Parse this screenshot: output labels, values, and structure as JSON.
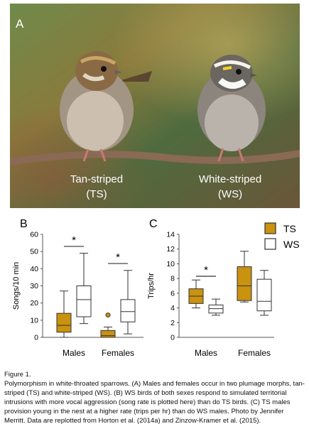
{
  "panel_a": {
    "letter": "A",
    "label_left_line1": "Tan-striped",
    "label_left_line2": "(TS)",
    "label_right_line1": "White-striped",
    "label_right_line2": "(WS)"
  },
  "colors": {
    "ts": "#c9920f",
    "ws": "#ffffff",
    "outline": "#333333"
  },
  "chart_data": [
    {
      "type": "box",
      "panel_letter": "B",
      "ylabel": "Songs/10 min",
      "ylim": [
        0,
        60
      ],
      "yticks": [
        "0",
        "10",
        "20",
        "30",
        "40",
        "50",
        "60"
      ],
      "categories": [
        "Males",
        "Females"
      ],
      "series": [
        {
          "name": "TS",
          "boxes": [
            {
              "category": "Males",
              "min": 0,
              "q1": 3,
              "median": 7,
              "q3": 14,
              "max": 27,
              "outliers": []
            },
            {
              "category": "Females",
              "min": 0,
              "q1": 0,
              "median": 1,
              "q3": 4,
              "max": 6,
              "outliers": [
                13
              ]
            }
          ]
        },
        {
          "name": "WS",
          "boxes": [
            {
              "category": "Males",
              "min": 8,
              "q1": 12,
              "median": 22,
              "q3": 30,
              "max": 49,
              "outliers": []
            },
            {
              "category": "Females",
              "min": 2,
              "q1": 9,
              "median": 15,
              "q3": 22,
              "max": 39,
              "outliers": []
            }
          ]
        }
      ],
      "annotations": [
        "*",
        "*"
      ]
    },
    {
      "type": "box",
      "panel_letter": "C",
      "ylabel": "Trips/hr",
      "ylim": [
        0,
        14
      ],
      "yticks": [
        "0",
        "2",
        "4",
        "6",
        "8",
        "10",
        "12",
        "14"
      ],
      "categories": [
        "Males",
        "Females"
      ],
      "legend": [
        "TS",
        "WS"
      ],
      "legend_position": "top-right",
      "series": [
        {
          "name": "TS",
          "boxes": [
            {
              "category": "Males",
              "min": 4,
              "q1": 4.6,
              "median": 5.6,
              "q3": 6.6,
              "max": 7.8,
              "outliers": []
            },
            {
              "category": "Females",
              "min": 4.8,
              "q1": 5,
              "median": 7,
              "q3": 9.6,
              "max": 11.7,
              "outliers": []
            }
          ]
        },
        {
          "name": "WS",
          "boxes": [
            {
              "category": "Males",
              "min": 3,
              "q1": 3.3,
              "median": 3.9,
              "q3": 4.4,
              "max": 5.2,
              "outliers": []
            },
            {
              "category": "Females",
              "min": 3,
              "q1": 3.6,
              "median": 4.9,
              "q3": 7.9,
              "max": 9.1,
              "outliers": []
            }
          ]
        }
      ],
      "annotations": [
        "*"
      ]
    }
  ],
  "caption": {
    "heading": "Figure 1.",
    "text": "Polymorphism in white-throated sparrows. (A) Males and females occur in two plumage morphs, tan-striped (TS) and white-striped (WS). (B) WS birds of both sexes respond to simulated territorial intrusions with more vocal aggression (song rate is plotted here) than do TS birds. (C) TS males provision young in the nest at a higher rate (trips per hr) than do WS males. Photo by Jennifer Merritt. Data are replotted from Horton et al. (2014a) and Zinzow-Kramer et al. (2015)."
  }
}
